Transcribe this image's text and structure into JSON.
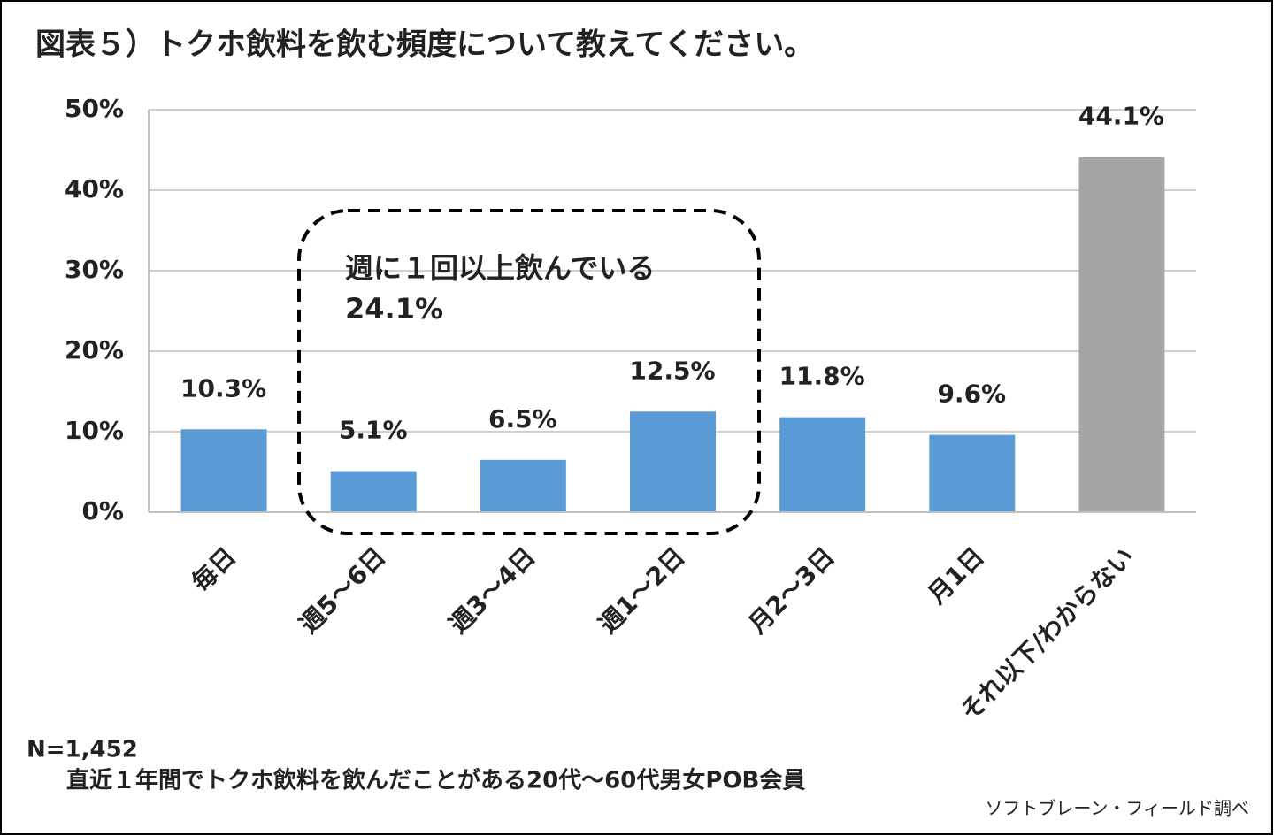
{
  "chart_data": {
    "type": "bar",
    "title": "図表５）トクホ飲料を飲む頻度について教えてください。",
    "categories": [
      "毎日",
      "週5～6日",
      "週3～4日",
      "週1～2日",
      "月2～3日",
      "月1日",
      "それ以下/わからない"
    ],
    "values": [
      10.3,
      5.1,
      6.5,
      12.5,
      11.8,
      9.6,
      44.1
    ],
    "value_labels": [
      "10.3%",
      "5.1%",
      "6.5%",
      "12.5%",
      "11.8%",
      "9.6%",
      "44.1%"
    ],
    "colors": [
      "#5b9bd5",
      "#5b9bd5",
      "#5b9bd5",
      "#5b9bd5",
      "#5b9bd5",
      "#5b9bd5",
      "#a5a5a5"
    ],
    "ylim": [
      0,
      50
    ],
    "yticks": [
      {
        "value": 0,
        "label": "0%"
      },
      {
        "value": 10,
        "label": "10%"
      },
      {
        "value": 20,
        "label": "20%"
      },
      {
        "value": 30,
        "label": "30%"
      },
      {
        "value": 40,
        "label": "40%"
      },
      {
        "value": 50,
        "label": "50%"
      }
    ],
    "grid": true,
    "annotation": {
      "text": "週に１回以上飲んでいる",
      "value_label": "24.1%"
    },
    "notes": [
      "N=1,452",
      "直近１年間でトクホ飲料を飲んだことがある20代～60代男女POB会員"
    ],
    "source": "ソフトブレーン・フィールド調べ"
  }
}
